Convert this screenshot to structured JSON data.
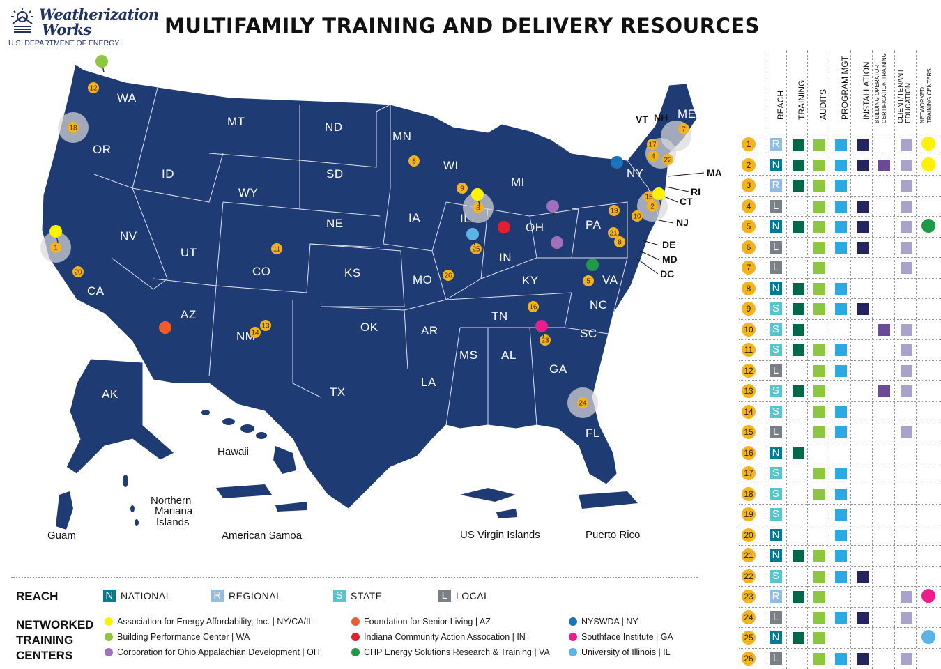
{
  "logo": {
    "line1": "Weatherization",
    "line2": "Works",
    "line3": "U.S. DEPARTMENT OF ENERGY"
  },
  "title": "MULTIFAMILY TRAINING AND DELIVERY RESOURCES",
  "colors": {
    "map_fill": "#1f3b73",
    "pin_yellow": "#fff200",
    "pin_lightgreen": "#8dc63f",
    "pin_purple": "#a070b8",
    "pin_orange": "#f15a29",
    "pin_red": "#e5202e",
    "pin_green": "#1f9a48",
    "pin_blue": "#1b75bc",
    "pin_magenta": "#ec1c8c",
    "pin_lightblue": "#5bb4e5",
    "num_dot": "#f5b31b",
    "reach_N": "#007b95",
    "reach_R": "#93bce2",
    "reach_S": "#58c4cd",
    "reach_L": "#7a8088",
    "training": "#00694a",
    "audits": "#8dc63f",
    "program_mgt": "#2aaae2",
    "installation": "#25255e",
    "bo_cert": "#6a4a97",
    "client_ed": "#a9a3cc"
  },
  "states": [
    "WA",
    "OR",
    "CA",
    "ID",
    "NV",
    "MT",
    "WY",
    "UT",
    "AZ",
    "CO",
    "NM",
    "ND",
    "SD",
    "NE",
    "KS",
    "OK",
    "TX",
    "MN",
    "IA",
    "MO",
    "AR",
    "LA",
    "WI",
    "IL",
    "MI",
    "IN",
    "OH",
    "KY",
    "TN",
    "MS",
    "AL",
    "AL",
    "GA",
    "FL",
    "SC",
    "NC",
    "VA",
    "PA",
    "NY",
    "ME",
    "VT",
    "NH",
    "AK"
  ],
  "state_callouts": [
    "MA",
    "RI",
    "CT",
    "NJ",
    "DE",
    "MD",
    "DC"
  ],
  "territories": {
    "hawaii": "Hawaii",
    "nmi1": "Northern",
    "nmi2": "Mariana",
    "nmi3": "Islands",
    "guam": "Guam",
    "samoa": "American Samoa",
    "usvi": "US Virgin Islands",
    "pr": "Puerto Rico"
  },
  "map_numbers": [
    "12",
    "18",
    "1",
    "20",
    "11",
    "13",
    "14",
    "6",
    "9",
    "3",
    "25",
    "26",
    "16",
    "23",
    "24",
    "5",
    "8",
    "21",
    "19",
    "10",
    "2",
    "15",
    "4",
    "17",
    "22",
    "7"
  ],
  "legend": {
    "reach_heading": "REACH",
    "reach_items": [
      {
        "letter": "N",
        "label": "NATIONAL"
      },
      {
        "letter": "R",
        "label": "REGIONAL"
      },
      {
        "letter": "S",
        "label": "STATE"
      },
      {
        "letter": "L",
        "label": "LOCAL"
      }
    ],
    "ntc_heading1": "NETWORKED",
    "ntc_heading2": "TRAINING",
    "ntc_heading3": "CENTERS",
    "ntc_items": [
      {
        "label": "Association for Energy Affordability, Inc. | NY/CA/IL",
        "color": "#fff200"
      },
      {
        "label": "Building Performance Center | WA",
        "color": "#8dc63f"
      },
      {
        "label": "Corporation for Ohio Appalachian Development | OH",
        "color": "#a070b8"
      },
      {
        "label": "Foundation for Senior Living | AZ",
        "color": "#f15a29"
      },
      {
        "label": "Indiana Community Action Assocation | IN",
        "color": "#e5202e"
      },
      {
        "label": "CHP Energy Solutions Research & Training | VA",
        "color": "#1f9a48"
      },
      {
        "label": "NYSWDA | NY",
        "color": "#1b75bc"
      },
      {
        "label": "Southface Institute | GA",
        "color": "#ec1c8c"
      },
      {
        "label": "University of Illinois | IL",
        "color": "#5bb4e5"
      }
    ]
  },
  "table": {
    "headers": [
      "REACH",
      "TRAINING",
      "AUDITS",
      "PROGRAM MGT",
      "INSTALLATION",
      "BUILDING OPERATOR",
      "CERTIFICATION TRAINING",
      "CLIENT/TENANT",
      "EDUCATION",
      "NETWORKED",
      "TRAINING CENTERS"
    ],
    "rows": [
      {
        "n": "1",
        "reach": "R",
        "cells": [
          1,
          1,
          1,
          1,
          0,
          1
        ],
        "pin": "#fff200"
      },
      {
        "n": "2",
        "reach": "N",
        "cells": [
          1,
          1,
          1,
          1,
          1,
          1
        ],
        "pin": "#fff200"
      },
      {
        "n": "3",
        "reach": "R",
        "cells": [
          1,
          1,
          1,
          0,
          0,
          1
        ],
        "pin": ""
      },
      {
        "n": "4",
        "reach": "L",
        "cells": [
          0,
          1,
          1,
          1,
          0,
          1
        ],
        "pin": ""
      },
      {
        "n": "5",
        "reach": "N",
        "cells": [
          1,
          1,
          1,
          1,
          0,
          1
        ],
        "pin": "#1f9a48"
      },
      {
        "n": "6",
        "reach": "L",
        "cells": [
          0,
          1,
          1,
          1,
          0,
          1
        ],
        "pin": ""
      },
      {
        "n": "7",
        "reach": "L",
        "cells": [
          0,
          1,
          0,
          0,
          0,
          1
        ],
        "pin": ""
      },
      {
        "n": "8",
        "reach": "N",
        "cells": [
          1,
          1,
          1,
          0,
          0,
          0
        ],
        "pin": ""
      },
      {
        "n": "9",
        "reach": "S",
        "cells": [
          1,
          1,
          1,
          1,
          0,
          0
        ],
        "pin": ""
      },
      {
        "n": "10",
        "reach": "S",
        "cells": [
          1,
          0,
          0,
          0,
          1,
          1
        ],
        "pin": ""
      },
      {
        "n": "11",
        "reach": "S",
        "cells": [
          1,
          1,
          1,
          0,
          0,
          1
        ],
        "pin": ""
      },
      {
        "n": "12",
        "reach": "L",
        "cells": [
          0,
          1,
          1,
          0,
          0,
          1
        ],
        "pin": ""
      },
      {
        "n": "13",
        "reach": "S",
        "cells": [
          1,
          1,
          0,
          0,
          1,
          1
        ],
        "pin": ""
      },
      {
        "n": "14",
        "reach": "S",
        "cells": [
          0,
          1,
          1,
          0,
          0,
          0
        ],
        "pin": ""
      },
      {
        "n": "15",
        "reach": "L",
        "cells": [
          0,
          1,
          1,
          0,
          0,
          1
        ],
        "pin": ""
      },
      {
        "n": "16",
        "reach": "N",
        "cells": [
          1,
          0,
          0,
          0,
          0,
          0
        ],
        "pin": ""
      },
      {
        "n": "17",
        "reach": "S",
        "cells": [
          0,
          1,
          1,
          0,
          0,
          0
        ],
        "pin": ""
      },
      {
        "n": "18",
        "reach": "S",
        "cells": [
          0,
          1,
          1,
          0,
          0,
          0
        ],
        "pin": ""
      },
      {
        "n": "19",
        "reach": "S",
        "cells": [
          0,
          0,
          1,
          0,
          0,
          0
        ],
        "pin": ""
      },
      {
        "n": "20",
        "reach": "N",
        "cells": [
          0,
          0,
          1,
          0,
          0,
          0
        ],
        "pin": ""
      },
      {
        "n": "21",
        "reach": "N",
        "cells": [
          1,
          1,
          1,
          0,
          0,
          0
        ],
        "pin": ""
      },
      {
        "n": "22",
        "reach": "S",
        "cells": [
          0,
          1,
          1,
          1,
          0,
          0
        ],
        "pin": ""
      },
      {
        "n": "23",
        "reach": "R",
        "cells": [
          1,
          1,
          0,
          0,
          0,
          1
        ],
        "pin": "#ec1c8c"
      },
      {
        "n": "24",
        "reach": "L",
        "cells": [
          0,
          1,
          1,
          1,
          0,
          1
        ],
        "pin": ""
      },
      {
        "n": "25",
        "reach": "N",
        "cells": [
          1,
          1,
          0,
          0,
          0,
          0
        ],
        "pin": "#5bb4e5"
      },
      {
        "n": "26",
        "reach": "L",
        "cells": [
          0,
          1,
          1,
          1,
          0,
          1
        ],
        "pin": ""
      }
    ]
  }
}
